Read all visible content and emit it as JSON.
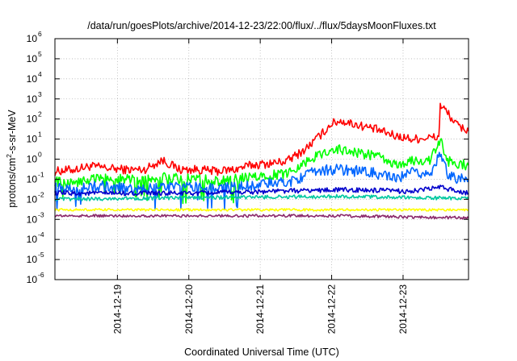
{
  "chart_data": {
    "type": "line",
    "title": "/data/run/goesPlots/archive/2014-12-23/22:00/flux/../flux/5daysMoonFluxes.txt",
    "xlabel": "Coordinated Universal Time (UTC)",
    "ylabel": "protons/cm2-s-sr-MeV",
    "ylabel_parts": {
      "pre": "protons/cm",
      "sup": "2",
      "post": "-s-sr-MeV"
    },
    "yscale": "log",
    "ylim": [
      1e-06,
      1000000.0
    ],
    "y_ticks": [
      {
        "exp": "-6"
      },
      {
        "exp": "-5"
      },
      {
        "exp": "-4"
      },
      {
        "exp": "-3"
      },
      {
        "exp": "-2"
      },
      {
        "exp": "-1"
      },
      {
        "exp": "0"
      },
      {
        "exp": "1"
      },
      {
        "exp": "2"
      },
      {
        "exp": "3"
      },
      {
        "exp": "4"
      },
      {
        "exp": "5"
      },
      {
        "exp": "6"
      }
    ],
    "x_ticks": [
      "2014-12-19",
      "2014-12-20",
      "2014-12-21",
      "2014-12-22",
      "2014-12-23"
    ],
    "xlim": [
      "2014-12-18T03:00",
      "2014-12-23T22:00"
    ],
    "grid": true,
    "legend": "none",
    "series": [
      {
        "color": "#ff0000",
        "x": [
          "2014-12-18T03:00",
          "2014-12-18T09:00",
          "2014-12-18T15:00",
          "2014-12-18T21:00",
          "2014-12-19T03:00",
          "2014-12-19T09:00",
          "2014-12-19T15:00",
          "2014-12-19T21:00",
          "2014-12-20T03:00",
          "2014-12-20T09:00",
          "2014-12-20T15:00",
          "2014-12-20T21:00",
          "2014-12-21T03:00",
          "2014-12-21T09:00",
          "2014-12-21T15:00",
          "2014-12-21T21:00",
          "2014-12-22T00:00",
          "2014-12-22T03:00",
          "2014-12-22T09:00",
          "2014-12-22T15:00",
          "2014-12-22T21:00",
          "2014-12-23T03:00",
          "2014-12-23T09:00",
          "2014-12-23T12:00",
          "2014-12-23T12:30",
          "2014-12-23T15:00",
          "2014-12-23T18:00",
          "2014-12-23T22:00"
        ],
        "y": [
          0.25,
          0.3,
          0.45,
          0.35,
          0.3,
          0.3,
          0.9,
          0.3,
          0.3,
          0.25,
          0.3,
          0.5,
          0.6,
          0.8,
          3,
          20,
          60,
          80,
          50,
          30,
          15,
          10,
          12,
          12,
          500,
          200,
          50,
          25
        ]
      },
      {
        "color": "#00ff00",
        "x": [
          "2014-12-18T03:00",
          "2014-12-18T09:00",
          "2014-12-18T15:00",
          "2014-12-18T21:00",
          "2014-12-19T03:00",
          "2014-12-19T09:00",
          "2014-12-19T15:00",
          "2014-12-19T21:00",
          "2014-12-20T03:00",
          "2014-12-20T09:00",
          "2014-12-20T15:00",
          "2014-12-20T21:00",
          "2014-12-21T03:00",
          "2014-12-21T09:00",
          "2014-12-21T15:00",
          "2014-12-21T21:00",
          "2014-12-22T00:00",
          "2014-12-22T03:00",
          "2014-12-22T09:00",
          "2014-12-22T15:00",
          "2014-12-22T21:00",
          "2014-12-23T03:00",
          "2014-12-23T09:00",
          "2014-12-23T12:30",
          "2014-12-23T15:00",
          "2014-12-23T18:00",
          "2014-12-23T22:00"
        ],
        "y": [
          0.08,
          0.06,
          0.1,
          0.12,
          0.1,
          0.08,
          0.15,
          0.1,
          0.12,
          0.08,
          0.1,
          0.12,
          0.15,
          0.2,
          0.7,
          2,
          3,
          3,
          2,
          1.5,
          0.5,
          0.8,
          0.9,
          8,
          0.8,
          0.6,
          0.5
        ]
      },
      {
        "color": "#0066ff",
        "x": [
          "2014-12-18T03:00",
          "2014-12-18T09:00",
          "2014-12-18T15:00",
          "2014-12-18T21:00",
          "2014-12-19T03:00",
          "2014-12-19T09:00",
          "2014-12-19T15:00",
          "2014-12-19T21:00",
          "2014-12-20T03:00",
          "2014-12-20T09:00",
          "2014-12-20T15:00",
          "2014-12-20T21:00",
          "2014-12-21T03:00",
          "2014-12-21T09:00",
          "2014-12-21T15:00",
          "2014-12-21T21:00",
          "2014-12-22T00:00",
          "2014-12-22T03:00",
          "2014-12-22T09:00",
          "2014-12-22T15:00",
          "2014-12-22T21:00",
          "2014-12-23T03:00",
          "2014-12-23T09:00",
          "2014-12-23T12:30",
          "2014-12-23T15:00",
          "2014-12-23T18:00",
          "2014-12-23T22:00"
        ],
        "y": [
          0.04,
          0.03,
          0.04,
          0.05,
          0.03,
          0.03,
          0.04,
          0.04,
          0.05,
          0.03,
          0.04,
          0.05,
          0.06,
          0.07,
          0.15,
          0.3,
          0.3,
          0.3,
          0.25,
          0.2,
          0.1,
          0.2,
          0.2,
          1.5,
          0.2,
          0.12,
          0.1
        ]
      },
      {
        "color": "#0000cc",
        "x": [
          "2014-12-18T03:00",
          "2014-12-19T03:00",
          "2014-12-20T03:00",
          "2014-12-21T03:00",
          "2014-12-22T03:00",
          "2014-12-23T03:00",
          "2014-12-23T12:30",
          "2014-12-23T22:00"
        ],
        "y": [
          0.02,
          0.02,
          0.02,
          0.025,
          0.03,
          0.025,
          0.04,
          0.02
        ]
      },
      {
        "color": "#00c8a0",
        "x": [
          "2014-12-18T03:00",
          "2014-12-19T03:00",
          "2014-12-20T03:00",
          "2014-12-21T03:00",
          "2014-12-22T03:00",
          "2014-12-23T03:00",
          "2014-12-23T22:00"
        ],
        "y": [
          0.01,
          0.011,
          0.012,
          0.013,
          0.014,
          0.012,
          0.011
        ]
      },
      {
        "color": "#ffff00",
        "x": [
          "2014-12-18T03:00",
          "2014-12-19T03:00",
          "2014-12-20T03:00",
          "2014-12-21T03:00",
          "2014-12-22T03:00",
          "2014-12-23T03:00",
          "2014-12-23T22:00"
        ],
        "y": [
          0.003,
          0.003,
          0.003,
          0.003,
          0.003,
          0.003,
          0.003
        ]
      },
      {
        "color": "#8b2a6b",
        "x": [
          "2014-12-18T03:00",
          "2014-12-19T03:00",
          "2014-12-20T03:00",
          "2014-12-21T03:00",
          "2014-12-22T03:00",
          "2014-12-23T03:00",
          "2014-12-23T22:00"
        ],
        "y": [
          0.0015,
          0.0015,
          0.0015,
          0.0015,
          0.0015,
          0.0013,
          0.0012
        ]
      }
    ]
  }
}
